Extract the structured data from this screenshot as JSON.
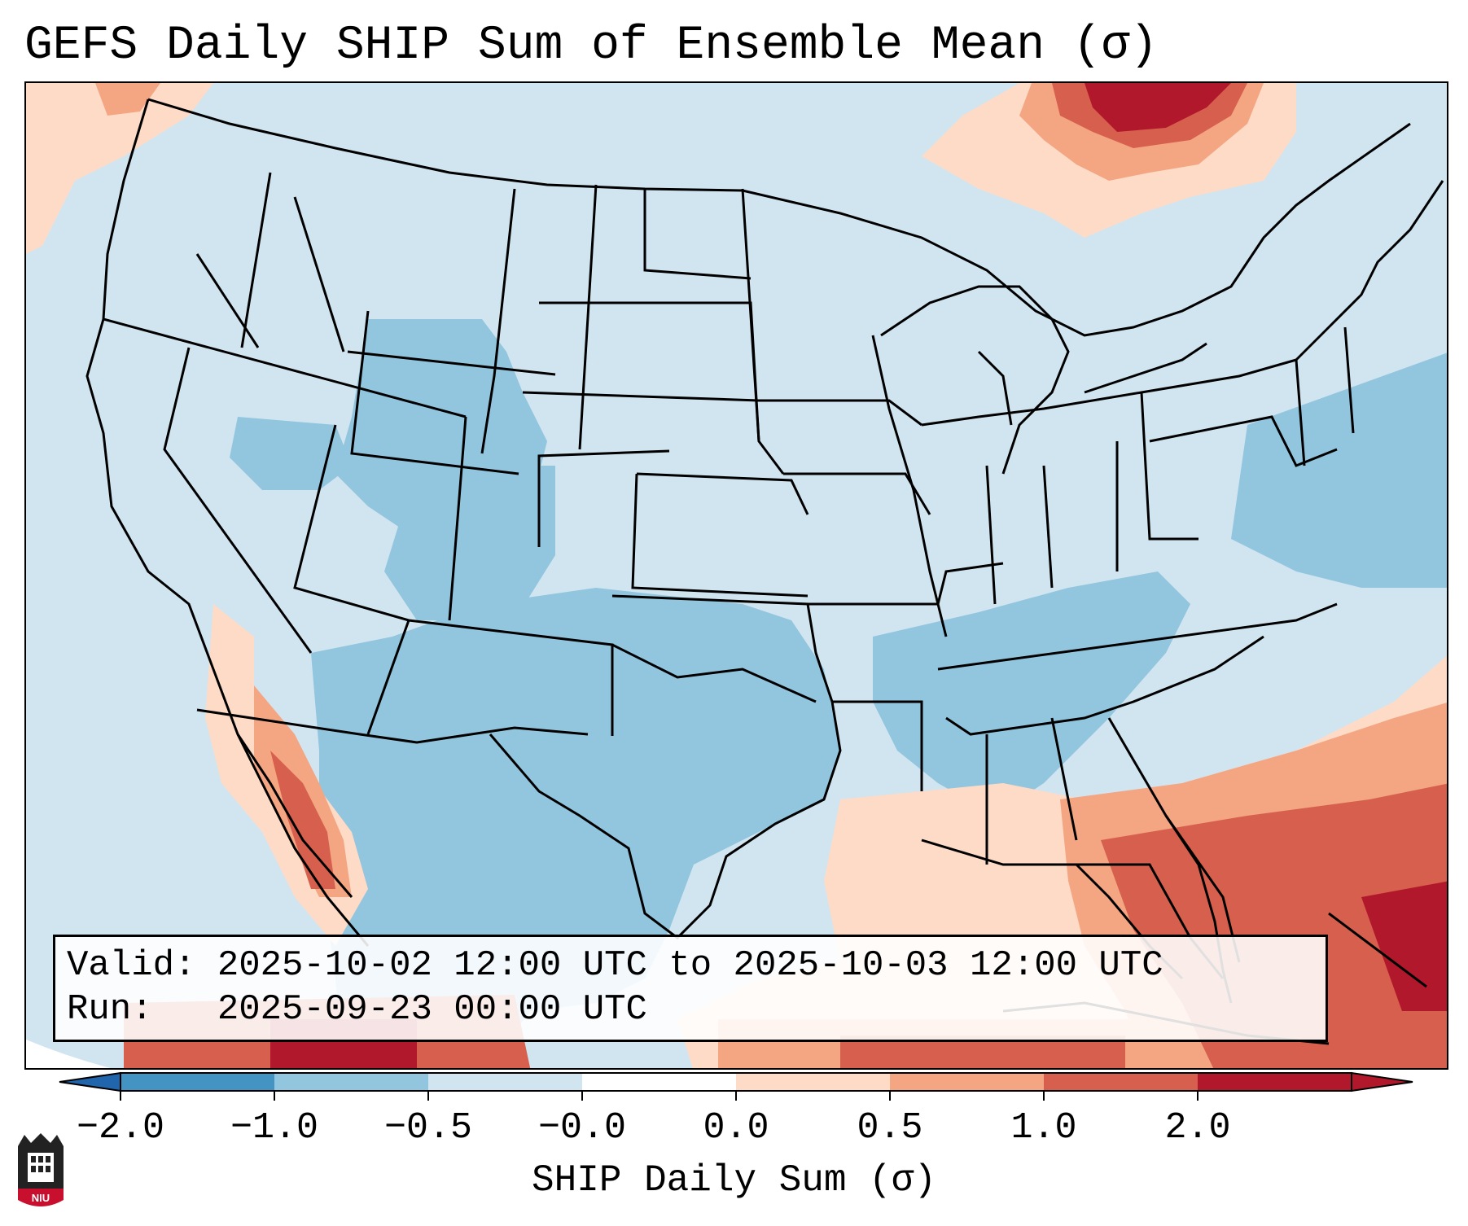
{
  "title": "GEFS Daily SHIP Sum of Ensemble Mean (σ)",
  "info": {
    "valid_label": "Valid:",
    "valid_value": "2025-10-02 12:00 UTC to 2025-10-03 12:00 UTC",
    "run_label": "Run:",
    "run_value": "2025-09-23 00:00 UTC"
  },
  "colorbar": {
    "label": "SHIP Daily Sum (σ)",
    "ticks": [
      "−2.0",
      "−1.0",
      "−0.5",
      "−0.0",
      "0.0",
      "0.5",
      "1.0",
      "2.0"
    ],
    "colors": [
      "#4393c3",
      "#92c5de",
      "#d1e5f0",
      "#ffffff",
      "#fddbc7",
      "#f4a582",
      "#d6604d",
      "#b2182b"
    ],
    "extend_low_color": "#2166ac",
    "extend_high_color": "#b2182b"
  },
  "map": {
    "region": "CONUS",
    "background_color": "#d1e5f0",
    "coast_color": "#000000"
  },
  "logo": {
    "text": "NIU"
  }
}
